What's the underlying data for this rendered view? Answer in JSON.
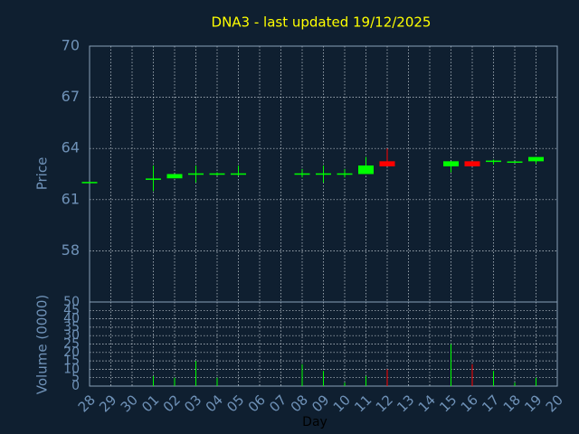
{
  "chart_data": [
    {
      "type": "candlestick",
      "title": "DNA3 - last updated 19/12/2025",
      "ylabel": "Price",
      "categories": [
        "28",
        "29",
        "30",
        "01",
        "02",
        "03",
        "04",
        "05",
        "06",
        "07",
        "08",
        "09",
        "10",
        "11",
        "12",
        "13",
        "14",
        "15",
        "16",
        "17",
        "18",
        "19",
        "20"
      ],
      "open": [
        62,
        null,
        null,
        62.2,
        62.25,
        62.5,
        62.5,
        62.5,
        null,
        null,
        62.5,
        62.5,
        62.5,
        62.5,
        63.25,
        null,
        null,
        62.95,
        63.25,
        63.25,
        63.2,
        63.25,
        null
      ],
      "high": [
        62,
        null,
        null,
        63,
        62.5,
        63,
        62.6,
        63,
        null,
        null,
        62.8,
        63,
        62.8,
        63.5,
        64,
        null,
        null,
        63.25,
        63.25,
        63.35,
        63.25,
        63.5,
        null
      ],
      "low": [
        62,
        null,
        null,
        61.5,
        62.25,
        62,
        62.4,
        62.4,
        null,
        null,
        62.3,
        62,
        62.3,
        62.5,
        62.95,
        null,
        null,
        62.6,
        62.95,
        63.05,
        63.15,
        63.1,
        null
      ],
      "close": [
        62,
        null,
        null,
        62.2,
        62.5,
        62.5,
        62.5,
        62.5,
        null,
        null,
        62.5,
        62.5,
        62.5,
        63,
        62.95,
        null,
        null,
        63.25,
        62.95,
        63.25,
        63.2,
        63.5,
        null
      ],
      "up_color": "#00ff00",
      "down_color": "#ff0000",
      "ylim": [
        55,
        70
      ],
      "yticks": [
        58,
        61,
        64,
        67,
        70
      ],
      "grid": true
    },
    {
      "type": "volume",
      "ylabel": "Volume (0000)",
      "xlabel": "Day",
      "values": [
        0,
        null,
        null,
        6,
        5,
        15,
        5,
        0,
        null,
        null,
        13,
        9,
        2,
        6,
        10,
        null,
        null,
        25,
        13,
        9,
        2,
        5,
        null
      ],
      "up_color": "#00ff00",
      "down_color": "#ff0000",
      "ylim": [
        0,
        50
      ],
      "yticks": [
        0,
        5,
        10,
        15,
        20,
        25,
        30,
        35,
        40,
        45,
        50
      ],
      "grid": true
    }
  ]
}
